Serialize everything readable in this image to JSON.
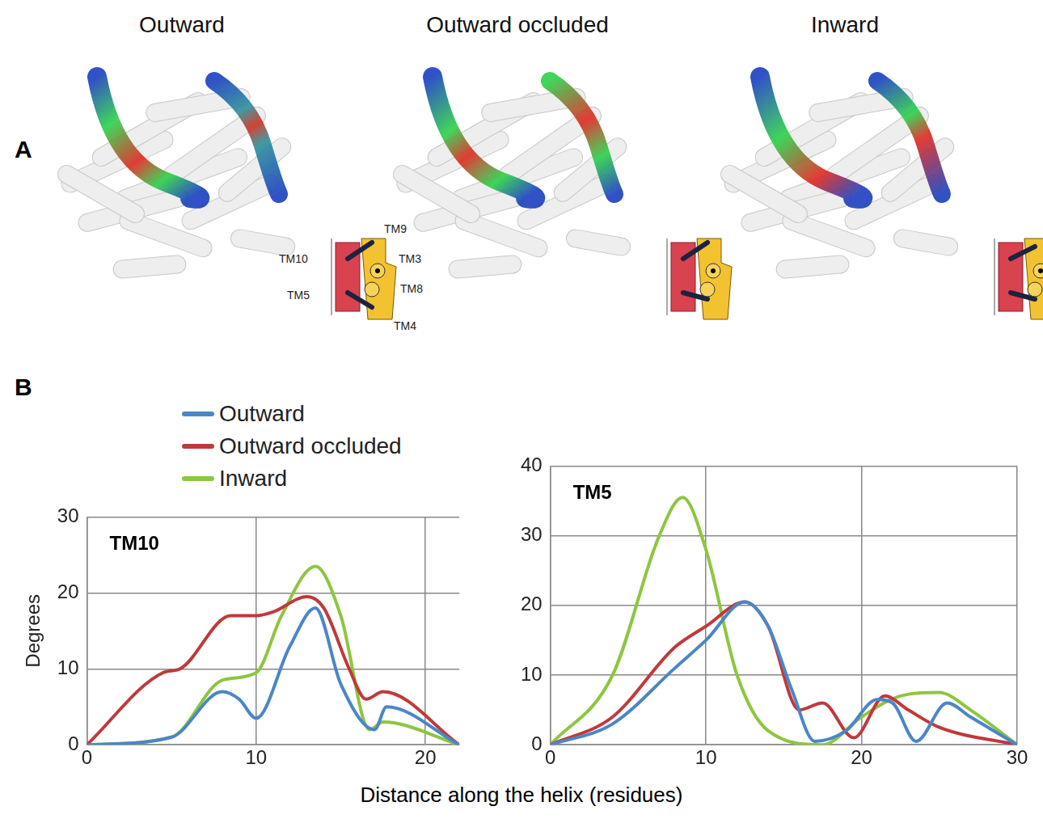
{
  "panel_a": {
    "letter": "A",
    "states": [
      "Outward",
      "Outward occluded",
      "Inward"
    ],
    "schematic_labels": [
      "TM10",
      "TM9",
      "TM3",
      "TM5",
      "TM8",
      "TM4"
    ]
  },
  "panel_b": {
    "letter": "B",
    "x_label": "Distance along the helix (residues)"
  },
  "chart_data": [
    {
      "type": "line",
      "title": "TM10",
      "y_label": "Degrees",
      "legend": "top-left",
      "grid": true,
      "xlim": [
        0,
        22
      ],
      "xticks": [
        0,
        10,
        20
      ],
      "ylim": [
        0,
        30
      ],
      "yticks": [
        0,
        10,
        20,
        30
      ],
      "series": [
        {
          "name": "Outward",
          "color": "#4a86c8",
          "x": [
            0,
            5,
            8,
            9,
            10,
            12,
            13.5,
            15,
            17,
            17.7,
            22
          ],
          "values": [
            0,
            1,
            7,
            6,
            3.5,
            13,
            18,
            8,
            2,
            5,
            0
          ]
        },
        {
          "name": "Outward occluded",
          "color": "#c0393b",
          "x": [
            0,
            4.5,
            5.5,
            8.5,
            10,
            11,
            13,
            14,
            15.5,
            16.5,
            17.5,
            22
          ],
          "values": [
            0,
            9.5,
            10,
            17,
            17,
            17.5,
            19.5,
            18,
            10,
            6,
            7,
            0
          ]
        },
        {
          "name": "Inward",
          "color": "#8dc63f",
          "x": [
            0,
            5,
            8,
            10,
            11.5,
            13.5,
            15,
            16.7,
            17.5,
            22
          ],
          "values": [
            0,
            1,
            8.5,
            9.5,
            17,
            23.5,
            17,
            2,
            3,
            0
          ]
        }
      ]
    },
    {
      "type": "line",
      "title": "TM5",
      "grid": true,
      "xlim": [
        0,
        30
      ],
      "xticks": [
        0,
        10,
        20,
        30
      ],
      "ylim": [
        0,
        40
      ],
      "yticks": [
        0,
        10,
        20,
        30,
        40
      ],
      "series": [
        {
          "name": "Outward",
          "color": "#4a86c8",
          "x": [
            0,
            4,
            8,
            10,
            12.5,
            14,
            15.5,
            17,
            19,
            21,
            22,
            23.5,
            25.5,
            27,
            30
          ],
          "values": [
            0,
            3,
            11,
            15,
            20.5,
            17,
            8,
            0.5,
            2,
            6.5,
            6,
            0.5,
            6,
            4,
            0
          ]
        },
        {
          "name": "Outward occluded",
          "color": "#c0393b",
          "x": [
            0,
            4,
            8,
            10,
            12.5,
            14,
            16,
            17.5,
            19.5,
            21.5,
            23,
            25,
            30
          ],
          "values": [
            0,
            4,
            14,
            17,
            20.5,
            17,
            5,
            6,
            1,
            7,
            5,
            2.5,
            0
          ]
        },
        {
          "name": "Inward",
          "color": "#8dc63f",
          "x": [
            0,
            4,
            7,
            8.5,
            10,
            12,
            14,
            17.5,
            20,
            22.5,
            25,
            27,
            30
          ],
          "values": [
            0,
            10,
            30,
            35.5,
            28,
            10,
            2,
            0,
            4,
            7,
            7.5,
            5,
            0
          ]
        }
      ]
    }
  ]
}
